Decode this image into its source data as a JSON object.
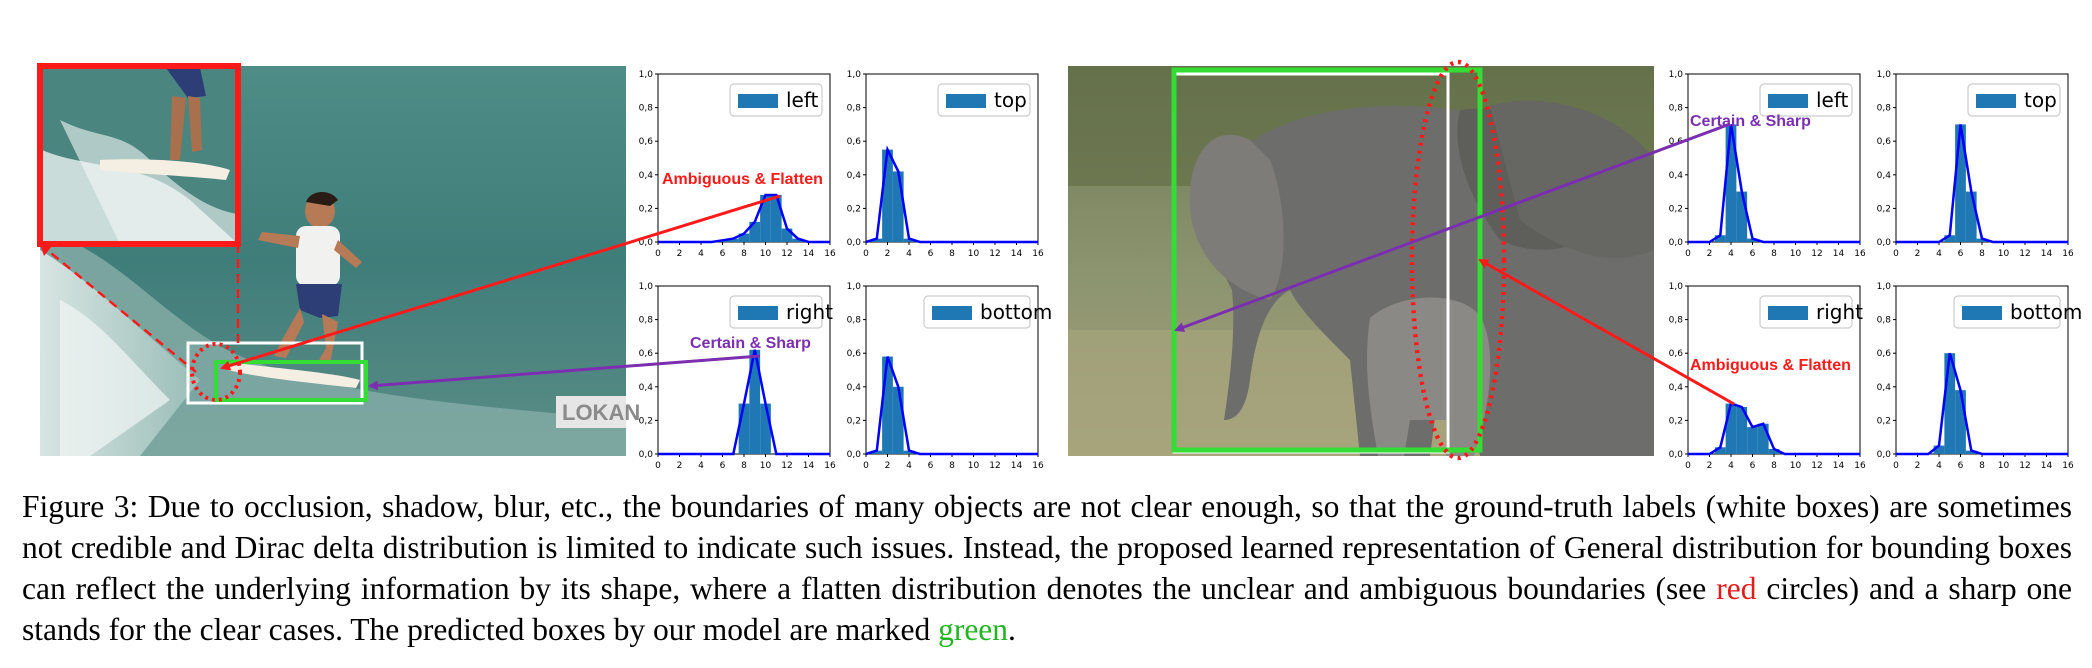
{
  "figure": {
    "left_photo": {
      "subject": "surfer",
      "overlay": {
        "brand_text": "LOKAN"
      }
    },
    "right_photo": {
      "subject": "elephants"
    },
    "annotations": {
      "left_flatten": "Ambiguous & Flatten",
      "left_sharp": "Certain & Sharp",
      "right_sharp": "Certain & Sharp",
      "right_flatten": "Ambiguous & Flatten"
    },
    "colors": {
      "red": "#ff1a1a",
      "purple": "#7b2fb0",
      "green": "#33dd33",
      "bar": "#1f77b4",
      "curve": "#0000ff"
    }
  },
  "chart_data": [
    {
      "type": "bar",
      "panel": "left-top-left",
      "legend": "left",
      "x": [
        0,
        1,
        2,
        3,
        4,
        5,
        6,
        7,
        8,
        9,
        10,
        11,
        12,
        13,
        14,
        15,
        16
      ],
      "values": [
        0,
        0,
        0,
        0,
        0,
        0,
        0.01,
        0.02,
        0.05,
        0.12,
        0.28,
        0.28,
        0.08,
        0.02,
        0,
        0,
        0
      ],
      "xlim": [
        0,
        16
      ],
      "ylim": [
        0,
        1.0
      ],
      "xticks": [
        "0",
        "2",
        "4",
        "6",
        "8",
        "10",
        "12",
        "14",
        "16"
      ],
      "yticks": [
        "0,0",
        "0,2",
        "0,4",
        "0,6",
        "0,8",
        "1,0"
      ]
    },
    {
      "type": "bar",
      "panel": "left-top-right",
      "legend": "top",
      "x": [
        0,
        1,
        2,
        3,
        4,
        5,
        6,
        7,
        8,
        9,
        10,
        11,
        12,
        13,
        14,
        15,
        16
      ],
      "values": [
        0,
        0.02,
        0.55,
        0.42,
        0.02,
        0,
        0,
        0,
        0,
        0,
        0,
        0,
        0,
        0,
        0,
        0,
        0
      ],
      "xlim": [
        0,
        16
      ],
      "ylim": [
        0,
        1.0
      ],
      "xticks": [
        "0",
        "2",
        "4",
        "6",
        "8",
        "10",
        "12",
        "14",
        "16"
      ],
      "yticks": [
        "0,0",
        "0,2",
        "0,4",
        "0,6",
        "0,8",
        "1,0"
      ]
    },
    {
      "type": "bar",
      "panel": "left-bottom-left",
      "legend": "right",
      "x": [
        0,
        1,
        2,
        3,
        4,
        5,
        6,
        7,
        8,
        9,
        10,
        11,
        12,
        13,
        14,
        15,
        16
      ],
      "values": [
        0,
        0,
        0,
        0,
        0,
        0,
        0,
        0,
        0.3,
        0.62,
        0.3,
        0,
        0,
        0,
        0,
        0,
        0
      ],
      "xlim": [
        0,
        16
      ],
      "ylim": [
        0,
        1.0
      ],
      "xticks": [
        "0",
        "2",
        "4",
        "6",
        "8",
        "10",
        "12",
        "14",
        "16"
      ],
      "yticks": [
        "0,0",
        "0,2",
        "0,4",
        "0,6",
        "0,8",
        "1,0"
      ]
    },
    {
      "type": "bar",
      "panel": "left-bottom-right",
      "legend": "bottom",
      "x": [
        0,
        1,
        2,
        3,
        4,
        5,
        6,
        7,
        8,
        9,
        10,
        11,
        12,
        13,
        14,
        15,
        16
      ],
      "values": [
        0,
        0.02,
        0.58,
        0.4,
        0.02,
        0,
        0,
        0,
        0,
        0,
        0,
        0,
        0,
        0,
        0,
        0,
        0
      ],
      "xlim": [
        0,
        16
      ],
      "ylim": [
        0,
        1.0
      ],
      "xticks": [
        "0",
        "2",
        "4",
        "6",
        "8",
        "10",
        "12",
        "14",
        "16"
      ],
      "yticks": [
        "0,0",
        "0,2",
        "0,4",
        "0,6",
        "0,8",
        "1,0"
      ]
    },
    {
      "type": "bar",
      "panel": "right-top-left",
      "legend": "left",
      "x": [
        0,
        1,
        2,
        3,
        4,
        5,
        6,
        7,
        8,
        9,
        10,
        11,
        12,
        13,
        14,
        15,
        16
      ],
      "values": [
        0,
        0,
        0,
        0.04,
        0.7,
        0.3,
        0.02,
        0,
        0,
        0,
        0,
        0,
        0,
        0,
        0,
        0,
        0
      ],
      "xlim": [
        0,
        16
      ],
      "ylim": [
        0,
        1.0
      ],
      "xticks": [
        "0",
        "2",
        "4",
        "6",
        "8",
        "10",
        "12",
        "14",
        "16"
      ],
      "yticks": [
        "0,0",
        "0,2",
        "0,4",
        "0,6",
        "0,8",
        "1,0"
      ]
    },
    {
      "type": "bar",
      "panel": "right-top-right",
      "legend": "top",
      "x": [
        0,
        1,
        2,
        3,
        4,
        5,
        6,
        7,
        8,
        9,
        10,
        11,
        12,
        13,
        14,
        15,
        16
      ],
      "values": [
        0,
        0,
        0,
        0,
        0,
        0.04,
        0.7,
        0.3,
        0.02,
        0,
        0,
        0,
        0,
        0,
        0,
        0,
        0
      ],
      "xlim": [
        0,
        16
      ],
      "ylim": [
        0,
        1.0
      ],
      "xticks": [
        "0",
        "2",
        "4",
        "6",
        "8",
        "10",
        "12",
        "14",
        "16"
      ],
      "yticks": [
        "0,0",
        "0,2",
        "0,4",
        "0,6",
        "0,8",
        "1,0"
      ]
    },
    {
      "type": "bar",
      "panel": "right-bottom-left",
      "legend": "right",
      "x": [
        0,
        1,
        2,
        3,
        4,
        5,
        6,
        7,
        8,
        9,
        10,
        11,
        12,
        13,
        14,
        15,
        16
      ],
      "values": [
        0,
        0,
        0,
        0.04,
        0.3,
        0.28,
        0.16,
        0.18,
        0.03,
        0,
        0,
        0,
        0,
        0,
        0,
        0,
        0
      ],
      "xlim": [
        0,
        16
      ],
      "ylim": [
        0,
        1.0
      ],
      "xticks": [
        "0",
        "2",
        "4",
        "6",
        "8",
        "10",
        "12",
        "14",
        "16"
      ],
      "yticks": [
        "0,0",
        "0,2",
        "0,4",
        "0,6",
        "0,8",
        "1,0"
      ]
    },
    {
      "type": "bar",
      "panel": "right-bottom-right",
      "legend": "bottom",
      "x": [
        0,
        1,
        2,
        3,
        4,
        5,
        6,
        7,
        8,
        9,
        10,
        11,
        12,
        13,
        14,
        15,
        16
      ],
      "values": [
        0,
        0,
        0,
        0,
        0.05,
        0.6,
        0.38,
        0.02,
        0,
        0,
        0,
        0,
        0,
        0,
        0,
        0,
        0
      ],
      "xlim": [
        0,
        16
      ],
      "ylim": [
        0,
        1.0
      ],
      "xticks": [
        "0",
        "2",
        "4",
        "6",
        "8",
        "10",
        "12",
        "14",
        "16"
      ],
      "yticks": [
        "0,0",
        "0,2",
        "0,4",
        "0,6",
        "0,8",
        "1,0"
      ]
    }
  ],
  "caption": {
    "part1": "Figure 3: Due to occlusion, shadow, blur, etc., the boundaries of many objects are not clear enough, so that the ground-truth labels (white boxes) are sometimes not credible and Dirac delta distribution is limited to indicate such issues. Instead, the proposed learned representation of General distribution for bounding boxes can reflect the underlying information by its shape, where a flatten distribution denotes the unclear and ambiguous boundaries (see ",
    "red_word": "red",
    "part2": " circles) and a sharp one stands for the clear cases. The predicted boxes by our model are marked ",
    "green_word": "green",
    "part3": "."
  }
}
